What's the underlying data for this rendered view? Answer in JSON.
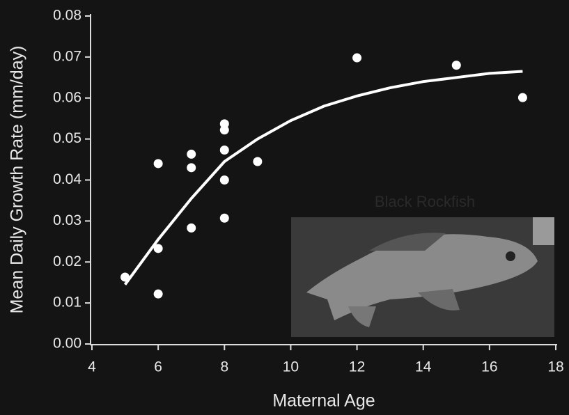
{
  "chart_data": {
    "type": "scatter",
    "x_label": "Maternal Age",
    "y_label": "Mean Daily Growth Rate (mm/day)",
    "annotation": "Black Rockfish",
    "xlim": [
      4,
      18
    ],
    "xticks": [
      4,
      6,
      8,
      10,
      12,
      14,
      16,
      18
    ],
    "ylim": [
      0,
      0.08
    ],
    "yticks": [
      {
        "value": 0,
        "label": "0.00"
      },
      {
        "value": 0.01,
        "label": "0.01"
      },
      {
        "value": 0.02,
        "label": "0.02"
      },
      {
        "value": 0.03,
        "label": "0.03"
      },
      {
        "value": 0.04,
        "label": "0.04"
      },
      {
        "value": 0.05,
        "label": "0.05"
      },
      {
        "value": 0.06,
        "label": "0.06"
      },
      {
        "value": 0.07,
        "label": "0.07"
      },
      {
        "value": 0.08,
        "label": "0.08"
      }
    ],
    "points": {
      "color": "#ffffff",
      "x": [
        5,
        6,
        6,
        6,
        7,
        7,
        7,
        8,
        8,
        8,
        8,
        8,
        9,
        12,
        15,
        17
      ],
      "values": [
        0.0163,
        0.044,
        0.0233,
        0.0122,
        0.0463,
        0.043,
        0.0283,
        0.0537,
        0.0522,
        0.0473,
        0.04,
        0.0307,
        0.0445,
        0.0698,
        0.068,
        0.0601
      ]
    },
    "fit": {
      "color": "#ffffff",
      "x": [
        5,
        6,
        7,
        8,
        9,
        10,
        11,
        12,
        13,
        14,
        15,
        16,
        17
      ],
      "values": [
        0.0145,
        0.0255,
        0.0355,
        0.0445,
        0.05,
        0.0545,
        0.058,
        0.0605,
        0.0625,
        0.064,
        0.065,
        0.066,
        0.0665
      ]
    }
  }
}
